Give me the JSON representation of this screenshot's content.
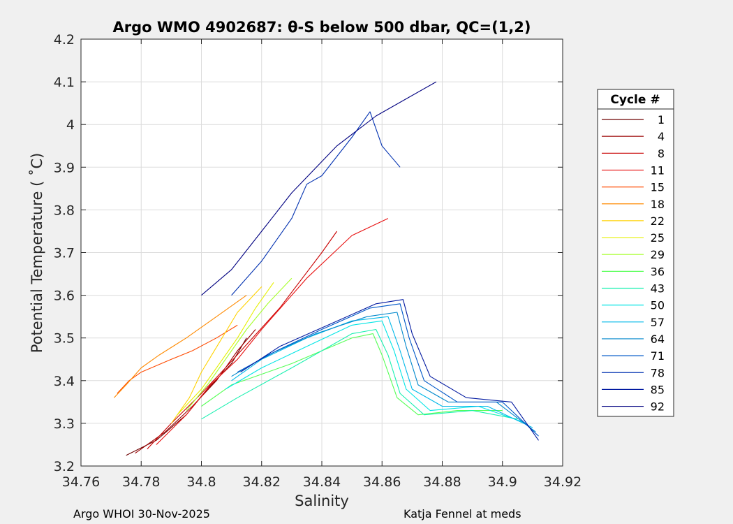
{
  "chart_data": {
    "type": "line",
    "title": "Argo WMO 4902687: θ-S below 500 dbar,  QC=(1,2)",
    "xlabel": "Salinity",
    "ylabel": "Potential Temperature ( ˚C)",
    "xlim": [
      34.76,
      34.92
    ],
    "ylim": [
      3.2,
      4.2
    ],
    "x_ticks": [
      "34.76",
      "34.78",
      "34.8",
      "34.82",
      "34.84",
      "34.86",
      "34.88",
      "34.9",
      "34.92"
    ],
    "y_ticks": [
      "3.2",
      "3.3",
      "3.4",
      "3.5",
      "3.6",
      "3.7",
      "3.8",
      "3.9",
      "4",
      "4.1",
      "4.2"
    ],
    "grid": true,
    "legend": {
      "title": "Cycle #",
      "placement": "right",
      "entries": [
        {
          "label": "1",
          "color": "#6e0000"
        },
        {
          "label": "4",
          "color": "#9a0000"
        },
        {
          "label": "8",
          "color": "#c80000"
        },
        {
          "label": "11",
          "color": "#e81010"
        },
        {
          "label": "15",
          "color": "#ff4a00"
        },
        {
          "label": "18",
          "color": "#ff8a00"
        },
        {
          "label": "22",
          "color": "#ffd200"
        },
        {
          "label": "25",
          "color": "#e6f000"
        },
        {
          "label": "29",
          "color": "#a6ff2a"
        },
        {
          "label": "36",
          "color": "#55ff55"
        },
        {
          "label": "43",
          "color": "#19f0b0"
        },
        {
          "label": "50",
          "color": "#00e5e5"
        },
        {
          "label": "57",
          "color": "#00b8e8"
        },
        {
          "label": "64",
          "color": "#0088cc"
        },
        {
          "label": "71",
          "color": "#0058c8"
        },
        {
          "label": "78",
          "color": "#0030b0"
        },
        {
          "label": "85",
          "color": "#0018a0"
        },
        {
          "label": "92",
          "color": "#000080"
        }
      ]
    },
    "series": [
      {
        "name": "1",
        "color": "#6e0000",
        "points": [
          [
            34.775,
            3.225
          ],
          [
            34.785,
            3.26
          ],
          [
            34.795,
            3.32
          ],
          [
            34.802,
            3.38
          ],
          [
            34.81,
            3.44
          ],
          [
            34.815,
            3.5
          ]
        ]
      },
      {
        "name": "4",
        "color": "#9a0000",
        "points": [
          [
            34.778,
            3.23
          ],
          [
            34.788,
            3.28
          ],
          [
            34.797,
            3.34
          ],
          [
            34.805,
            3.4
          ],
          [
            34.812,
            3.47
          ],
          [
            34.818,
            3.52
          ]
        ]
      },
      {
        "name": "8",
        "color": "#c80000",
        "points": [
          [
            34.782,
            3.24
          ],
          [
            34.79,
            3.3
          ],
          [
            34.8,
            3.37
          ],
          [
            34.808,
            3.43
          ],
          [
            34.817,
            3.5
          ],
          [
            34.826,
            3.57
          ],
          [
            34.84,
            3.7
          ],
          [
            34.845,
            3.75
          ]
        ]
      },
      {
        "name": "11",
        "color": "#e81010",
        "points": [
          [
            34.785,
            3.25
          ],
          [
            34.795,
            3.32
          ],
          [
            34.803,
            3.39
          ],
          [
            34.812,
            3.45
          ],
          [
            34.82,
            3.52
          ],
          [
            34.835,
            3.64
          ],
          [
            34.85,
            3.74
          ],
          [
            34.862,
            3.78
          ]
        ]
      },
      {
        "name": "15",
        "color": "#ff4a00",
        "points": [
          [
            34.772,
            3.37
          ],
          [
            34.776,
            3.4
          ],
          [
            34.78,
            3.42
          ],
          [
            34.79,
            3.45
          ],
          [
            34.797,
            3.47
          ],
          [
            34.805,
            3.5
          ],
          [
            34.812,
            3.53
          ]
        ]
      },
      {
        "name": "18",
        "color": "#ff8a00",
        "points": [
          [
            34.771,
            3.36
          ],
          [
            34.775,
            3.39
          ],
          [
            34.78,
            3.43
          ],
          [
            34.786,
            3.46
          ],
          [
            34.795,
            3.5
          ],
          [
            34.805,
            3.55
          ],
          [
            34.815,
            3.6
          ]
        ]
      },
      {
        "name": "22",
        "color": "#ffd200",
        "points": [
          [
            34.79,
            3.3
          ],
          [
            34.796,
            3.36
          ],
          [
            34.8,
            3.42
          ],
          [
            34.806,
            3.49
          ],
          [
            34.812,
            3.56
          ],
          [
            34.82,
            3.62
          ]
        ]
      },
      {
        "name": "25",
        "color": "#e6f000",
        "points": [
          [
            34.792,
            3.32
          ],
          [
            34.8,
            3.38
          ],
          [
            34.806,
            3.44
          ],
          [
            34.812,
            3.5
          ],
          [
            34.818,
            3.57
          ],
          [
            34.824,
            3.63
          ]
        ]
      },
      {
        "name": "29",
        "color": "#a6ff2a",
        "points": [
          [
            34.795,
            3.33
          ],
          [
            34.802,
            3.39
          ],
          [
            34.808,
            3.45
          ],
          [
            34.815,
            3.52
          ],
          [
            34.822,
            3.58
          ],
          [
            34.83,
            3.64
          ]
        ]
      },
      {
        "name": "36",
        "color": "#55ff55",
        "points": [
          [
            34.8,
            3.34
          ],
          [
            34.81,
            3.39
          ],
          [
            34.83,
            3.44
          ],
          [
            34.85,
            3.5
          ],
          [
            34.857,
            3.51
          ],
          [
            34.86,
            3.46
          ],
          [
            34.865,
            3.36
          ],
          [
            34.872,
            3.32
          ],
          [
            34.885,
            3.33
          ],
          [
            34.9,
            3.33
          ]
        ]
      },
      {
        "name": "43",
        "color": "#19f0b0",
        "points": [
          [
            34.8,
            3.31
          ],
          [
            34.812,
            3.36
          ],
          [
            34.83,
            3.43
          ],
          [
            34.85,
            3.51
          ],
          [
            34.858,
            3.52
          ],
          [
            34.862,
            3.46
          ],
          [
            34.866,
            3.37
          ],
          [
            34.874,
            3.32
          ],
          [
            34.89,
            3.33
          ],
          [
            34.905,
            3.31
          ]
        ]
      },
      {
        "name": "50",
        "color": "#00e5e5",
        "points": [
          [
            34.808,
            3.38
          ],
          [
            34.82,
            3.43
          ],
          [
            34.835,
            3.48
          ],
          [
            34.85,
            3.53
          ],
          [
            34.86,
            3.54
          ],
          [
            34.864,
            3.47
          ],
          [
            34.868,
            3.38
          ],
          [
            34.876,
            3.33
          ],
          [
            34.892,
            3.34
          ],
          [
            34.908,
            3.3
          ]
        ]
      },
      {
        "name": "57",
        "color": "#00b8e8",
        "points": [
          [
            34.81,
            3.4
          ],
          [
            34.82,
            3.45
          ],
          [
            34.835,
            3.5
          ],
          [
            34.85,
            3.54
          ],
          [
            34.862,
            3.55
          ],
          [
            34.866,
            3.47
          ],
          [
            34.87,
            3.38
          ],
          [
            34.88,
            3.34
          ],
          [
            34.895,
            3.34
          ],
          [
            34.91,
            3.29
          ]
        ]
      },
      {
        "name": "64",
        "color": "#0088cc",
        "points": [
          [
            34.81,
            3.41
          ],
          [
            34.822,
            3.46
          ],
          [
            34.838,
            3.51
          ],
          [
            34.855,
            3.55
          ],
          [
            34.865,
            3.56
          ],
          [
            34.868,
            3.48
          ],
          [
            34.872,
            3.39
          ],
          [
            34.882,
            3.35
          ],
          [
            34.898,
            3.35
          ],
          [
            34.911,
            3.28
          ]
        ]
      },
      {
        "name": "71",
        "color": "#0058c8",
        "points": [
          [
            34.812,
            3.42
          ],
          [
            34.825,
            3.47
          ],
          [
            34.84,
            3.52
          ],
          [
            34.856,
            3.57
          ],
          [
            34.866,
            3.58
          ],
          [
            34.869,
            3.5
          ],
          [
            34.874,
            3.4
          ],
          [
            34.885,
            3.35
          ],
          [
            34.9,
            3.35
          ],
          [
            34.912,
            3.27
          ]
        ]
      },
      {
        "name": "78",
        "color": "#0030b0",
        "points": [
          [
            34.81,
            3.6
          ],
          [
            34.82,
            3.68
          ],
          [
            34.83,
            3.78
          ],
          [
            34.835,
            3.86
          ],
          [
            34.84,
            3.88
          ],
          [
            34.85,
            3.97
          ],
          [
            34.856,
            4.03
          ],
          [
            34.86,
            3.95
          ],
          [
            34.866,
            3.9
          ]
        ]
      },
      {
        "name": "85",
        "color": "#0018a0",
        "points": [
          [
            34.813,
            3.42
          ],
          [
            34.826,
            3.48
          ],
          [
            34.842,
            3.53
          ],
          [
            34.858,
            3.58
          ],
          [
            34.867,
            3.59
          ],
          [
            34.87,
            3.51
          ],
          [
            34.876,
            3.41
          ],
          [
            34.888,
            3.36
          ],
          [
            34.903,
            3.35
          ],
          [
            34.912,
            3.26
          ]
        ]
      },
      {
        "name": "92",
        "color": "#000080",
        "points": [
          [
            34.8,
            3.6
          ],
          [
            34.81,
            3.66
          ],
          [
            34.82,
            3.75
          ],
          [
            34.83,
            3.84
          ],
          [
            34.845,
            3.95
          ],
          [
            34.858,
            4.02
          ],
          [
            34.868,
            4.06
          ],
          [
            34.878,
            4.1
          ]
        ]
      }
    ]
  },
  "footer": {
    "left": "Argo WHOI 30-Nov-2025",
    "right": "Katja Fennel at meds"
  }
}
